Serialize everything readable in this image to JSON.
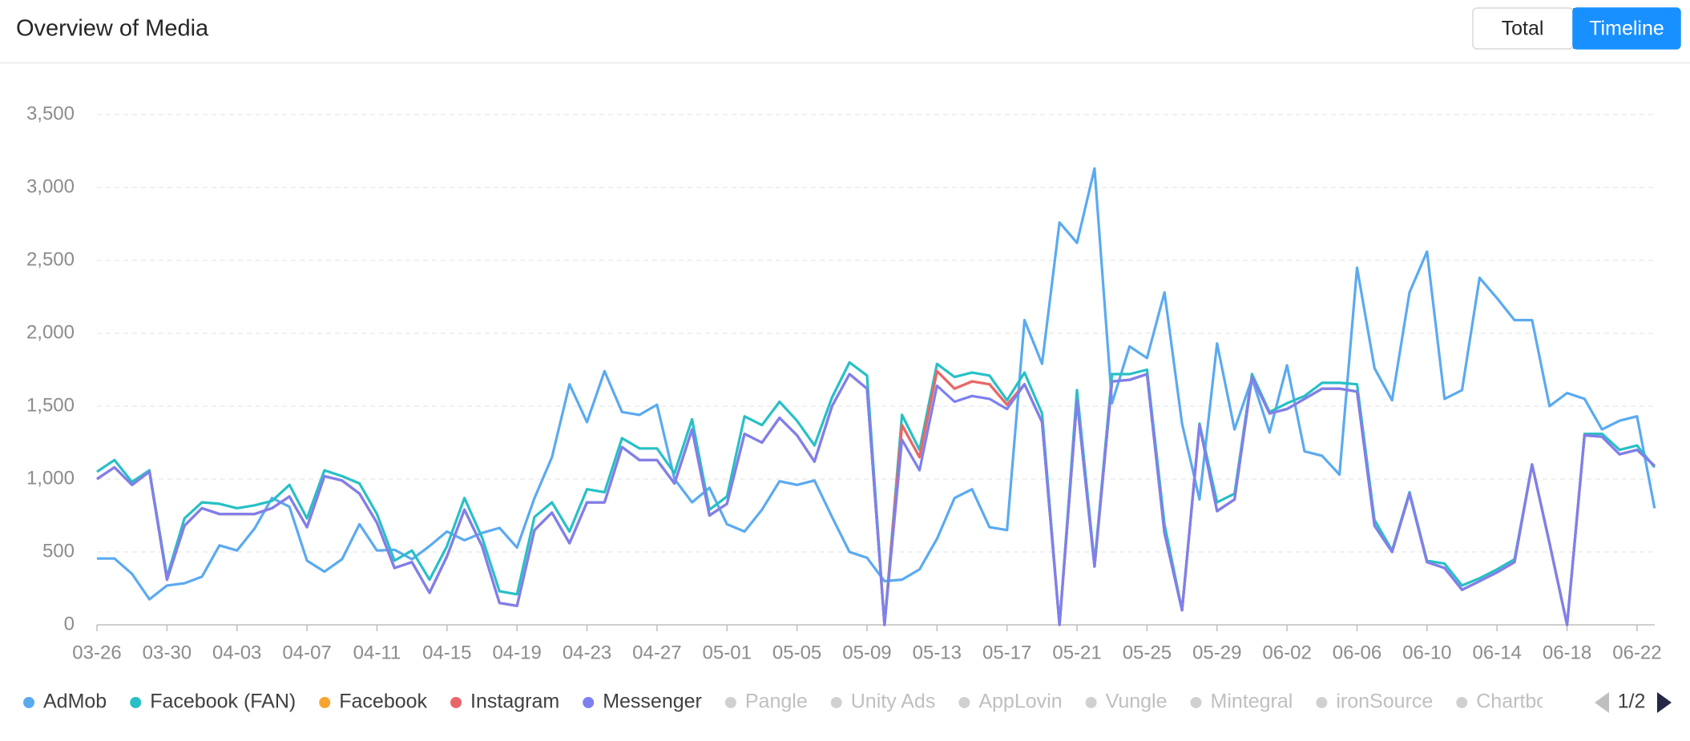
{
  "header": {
    "title": "Overview of Media",
    "buttons": [
      "Total",
      "Timeline"
    ],
    "active_button": 1
  },
  "chart_data": {
    "type": "line",
    "categories": [
      "03-26",
      null,
      null,
      null,
      "03-30",
      null,
      null,
      null,
      "04-03",
      null,
      null,
      null,
      "04-07",
      null,
      null,
      null,
      "04-11",
      null,
      null,
      null,
      "04-15",
      null,
      null,
      null,
      "04-19",
      null,
      null,
      null,
      "04-23",
      null,
      null,
      null,
      "04-27",
      null,
      null,
      null,
      "05-01",
      null,
      null,
      null,
      "05-05",
      null,
      null,
      null,
      "05-09",
      null,
      null,
      null,
      "05-13",
      null,
      null,
      null,
      "05-17",
      null,
      null,
      null,
      "05-21",
      null,
      null,
      null,
      "05-25",
      null,
      null,
      null,
      "05-29",
      null,
      null,
      null,
      "06-02",
      null,
      null,
      null,
      "06-06",
      null,
      null,
      null,
      "06-10",
      null,
      null,
      null,
      "06-14",
      null,
      null,
      null,
      "06-18",
      null,
      null,
      null,
      "06-22",
      null
    ],
    "ylim": [
      0,
      3500
    ],
    "yticks": [
      0,
      500,
      {
        "value": 1000,
        "label": "1,000"
      },
      {
        "value": 1500,
        "label": "1,500"
      },
      {
        "value": 2000,
        "label": "2,000"
      },
      {
        "value": 2500,
        "label": "2,500"
      },
      {
        "value": 3000,
        "label": "3,000"
      },
      {
        "value": 3500,
        "label": "3,500"
      }
    ],
    "grid": true,
    "series": [
      {
        "name": "AdMob",
        "color": "#5aaaf0",
        "values": [
          455,
          455,
          350,
          175,
          270,
          285,
          330,
          545,
          510,
          660,
          870,
          810,
          440,
          365,
          450,
          690,
          510,
          515,
          450,
          540,
          640,
          580,
          630,
          665,
          530,
          870,
          1150,
          1650,
          1390,
          1740,
          1460,
          1440,
          1510,
          1000,
          840,
          940,
          690,
          640,
          790,
          985,
          960,
          990,
          740,
          500,
          460,
          300,
          310,
          380,
          590,
          870,
          930,
          670,
          650,
          2090,
          1790,
          2760,
          2620,
          3130,
          1520,
          1910,
          1830,
          2280,
          1380,
          860,
          1930,
          1340,
          1690,
          1320,
          1780,
          1190,
          1160,
          1030,
          2450,
          1760,
          1540,
          2280,
          2560,
          1550,
          1610,
          2380,
          2240,
          2090,
          2090,
          1500,
          1590,
          1550,
          1340,
          1400,
          1430,
          800
        ]
      },
      {
        "name": "Facebook (FAN)",
        "color": "#26c0c6",
        "values": [
          1050,
          1130,
          980,
          1060,
          330,
          730,
          840,
          830,
          800,
          820,
          850,
          960,
          730,
          1060,
          1020,
          970,
          760,
          440,
          510,
          310,
          540,
          870,
          600,
          230,
          210,
          740,
          840,
          640,
          930,
          910,
          1280,
          1210,
          1210,
          1040,
          1410,
          790,
          880,
          1430,
          1370,
          1530,
          1400,
          1230,
          1560,
          1800,
          1710,
          0,
          1440,
          1200,
          1790,
          1700,
          1730,
          1710,
          1540,
          1730,
          1450,
          0,
          1610,
          420,
          1720,
          1720,
          1750,
          690,
          100,
          1380,
          840,
          900,
          1720,
          1460,
          1520,
          1570,
          1660,
          1660,
          1650,
          720,
          510,
          910,
          440,
          420,
          270,
          320,
          380,
          450,
          1100,
          560,
          0,
          1310,
          1310,
          1200,
          1230,
          1080
        ]
      },
      {
        "name": "Facebook",
        "color": "#f7a531",
        "values": [
          1000,
          1080,
          960,
          1050,
          310,
          680,
          800,
          760,
          760,
          760,
          800,
          880,
          670,
          1020,
          990,
          900,
          700,
          390,
          430,
          220,
          470,
          790,
          540,
          150,
          130,
          650,
          770,
          560,
          840,
          840,
          1220,
          1130,
          1130,
          970,
          1340,
          750,
          830,
          1310,
          1250,
          1420,
          1300,
          1120,
          1500,
          1720,
          1620,
          0,
          1370,
          1150,
          1740,
          1620,
          1670,
          1650,
          1510,
          1650,
          1390,
          0,
          1540,
          400,
          1670,
          1680,
          1720,
          630,
          100,
          1370,
          780,
          860,
          1700,
          1450,
          1480,
          1550,
          1620,
          1620,
          1600,
          680,
          500,
          900,
          430,
          390,
          240,
          300,
          360,
          430,
          1100,
          560,
          0,
          1300,
          1290,
          1170,
          1200,
          1090
        ]
      },
      {
        "name": "Instagram",
        "color": "#e8666a",
        "values": [
          1000,
          1080,
          960,
          1050,
          310,
          680,
          800,
          760,
          760,
          760,
          800,
          880,
          670,
          1020,
          990,
          900,
          700,
          390,
          430,
          220,
          470,
          790,
          540,
          150,
          130,
          650,
          770,
          560,
          840,
          840,
          1220,
          1130,
          1130,
          970,
          1340,
          750,
          830,
          1310,
          1250,
          1420,
          1300,
          1120,
          1500,
          1720,
          1620,
          0,
          1370,
          1150,
          1740,
          1620,
          1670,
          1650,
          1510,
          1650,
          1390,
          0,
          1540,
          400,
          1670,
          1680,
          1720,
          630,
          100,
          1370,
          780,
          860,
          1700,
          1450,
          1480,
          1550,
          1620,
          1620,
          1600,
          680,
          500,
          900,
          430,
          390,
          240,
          300,
          360,
          430,
          1100,
          560,
          0,
          1300,
          1290,
          1170,
          1200,
          1090
        ]
      },
      {
        "name": "Messenger",
        "color": "#7d80ef",
        "values": [
          1000,
          1080,
          960,
          1050,
          310,
          680,
          800,
          760,
          760,
          760,
          800,
          880,
          670,
          1020,
          990,
          900,
          700,
          390,
          430,
          220,
          470,
          790,
          540,
          150,
          130,
          650,
          770,
          560,
          840,
          840,
          1220,
          1130,
          1130,
          970,
          1340,
          750,
          830,
          1310,
          1250,
          1420,
          1300,
          1120,
          1500,
          1720,
          1620,
          0,
          1270,
          1060,
          1640,
          1530,
          1570,
          1550,
          1480,
          1650,
          1390,
          0,
          1540,
          400,
          1670,
          1680,
          1720,
          630,
          100,
          1370,
          780,
          860,
          1700,
          1450,
          1480,
          1550,
          1620,
          1620,
          1600,
          680,
          500,
          900,
          430,
          390,
          240,
          300,
          360,
          430,
          1100,
          560,
          0,
          1300,
          1290,
          1170,
          1200,
          1090
        ]
      }
    ],
    "inactive_legend": [
      "Pangle",
      "Unity Ads",
      "AppLovin",
      "Vungle",
      "Mintegral",
      "ironSource",
      "Chartboost"
    ],
    "legend_page": "1/2"
  }
}
